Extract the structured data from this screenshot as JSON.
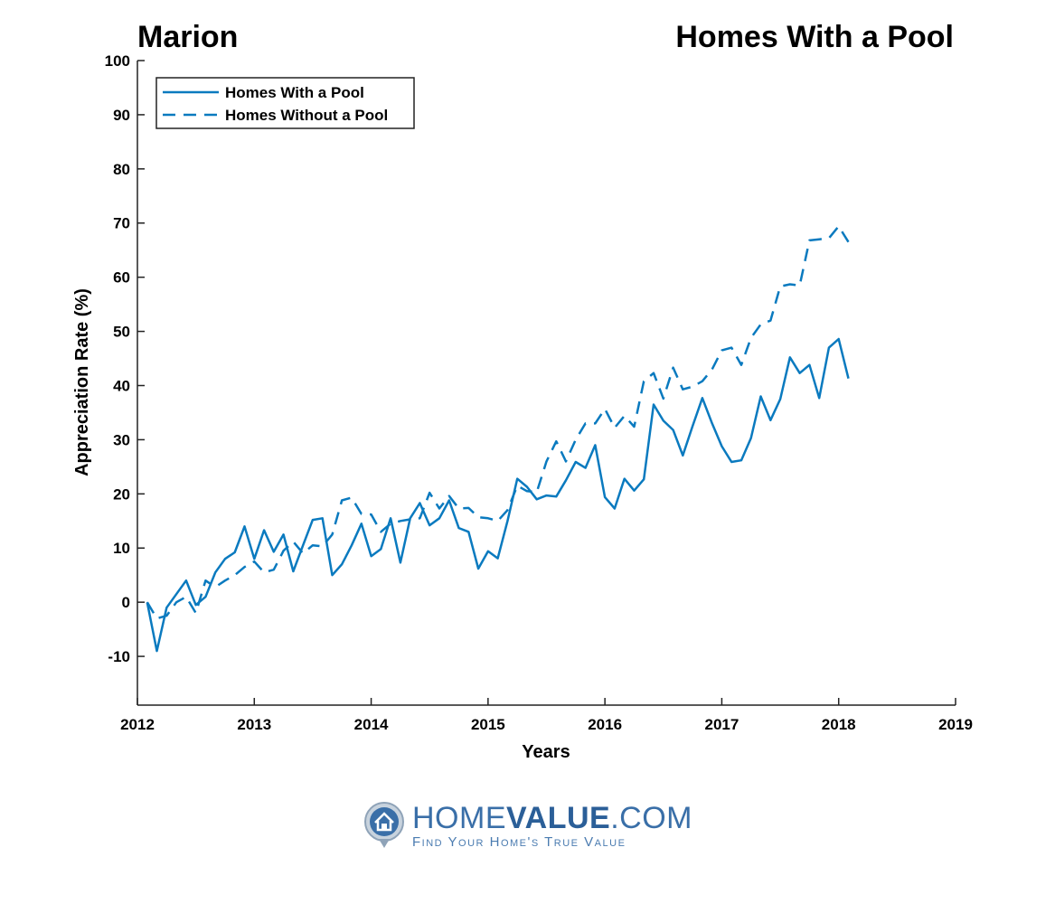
{
  "chart_data": {
    "type": "line",
    "title_left": "Marion",
    "title_right": "Homes With a Pool",
    "xlabel": "Years",
    "ylabel": "Appreciation Rate (%)",
    "xlim": [
      2012,
      2019
    ],
    "ylim": [
      -19,
      100
    ],
    "xticks": [
      2012,
      2013,
      2014,
      2015,
      2016,
      2017,
      2018,
      2019
    ],
    "yticks": [
      -10,
      0,
      10,
      20,
      30,
      40,
      50,
      60,
      70,
      80,
      90,
      100
    ],
    "grid": false,
    "legend_position": "top-left",
    "color": "#0a7abf",
    "x_start": 2012.0833,
    "x_step_months": 1,
    "series": [
      {
        "name": "Homes With a Pool",
        "style": "solid",
        "values": [
          0,
          -9,
          -1,
          1.5,
          4,
          -0.5,
          1,
          5.5,
          8,
          9.2,
          14,
          8,
          13.3,
          9.3,
          12.5,
          5.7,
          10.5,
          15.2,
          15.5,
          5,
          7,
          10.5,
          14.5,
          8.5,
          9.8,
          15.5,
          7.3,
          15.5,
          18.3,
          14.2,
          15.5,
          18.8,
          13.7,
          13,
          6.2,
          9.4,
          8.1,
          15,
          22.8,
          21.3,
          19,
          19.7,
          19.5,
          22.5,
          25.9,
          24.8,
          29,
          19.4,
          17.3,
          22.8,
          20.6,
          22.7,
          36.5,
          33.5,
          31.8,
          27.1,
          32.5,
          37.7,
          33,
          28.8,
          25.9,
          26.2,
          30.3,
          38,
          33.6,
          37.5,
          45.2,
          42.3,
          43.8,
          37.7,
          47,
          48.6,
          41.3
        ]
      },
      {
        "name": "Homes Without a Pool",
        "style": "dashed",
        "values": [
          0,
          -3,
          -2.5,
          0,
          1,
          -2,
          4,
          2.8,
          4,
          5,
          6.5,
          7.5,
          5.5,
          6,
          9.5,
          11.2,
          9,
          10.5,
          10.3,
          12.5,
          18.8,
          19.3,
          16.3,
          16.2,
          13,
          14.5,
          15,
          15.3,
          15.5,
          20.2,
          17.3,
          19.6,
          17.3,
          17.4,
          15.7,
          15.5,
          15,
          17,
          21.5,
          20.5,
          20.3,
          26,
          29.7,
          26,
          30,
          33,
          33,
          35.7,
          32.2,
          34.4,
          32.4,
          40.8,
          42.3,
          37.6,
          43.3,
          39.3,
          39.8,
          40.8,
          43,
          46.5,
          47,
          43.8,
          48.8,
          51.3,
          52,
          58.3,
          58.7,
          58.5,
          66.8,
          67,
          67.2,
          69.4,
          66.5
        ]
      }
    ]
  },
  "logo": {
    "brand_home": "HOME",
    "brand_value": "VALUE",
    "brand_com": ".COM",
    "tagline": "Find Your Home's True Value"
  }
}
